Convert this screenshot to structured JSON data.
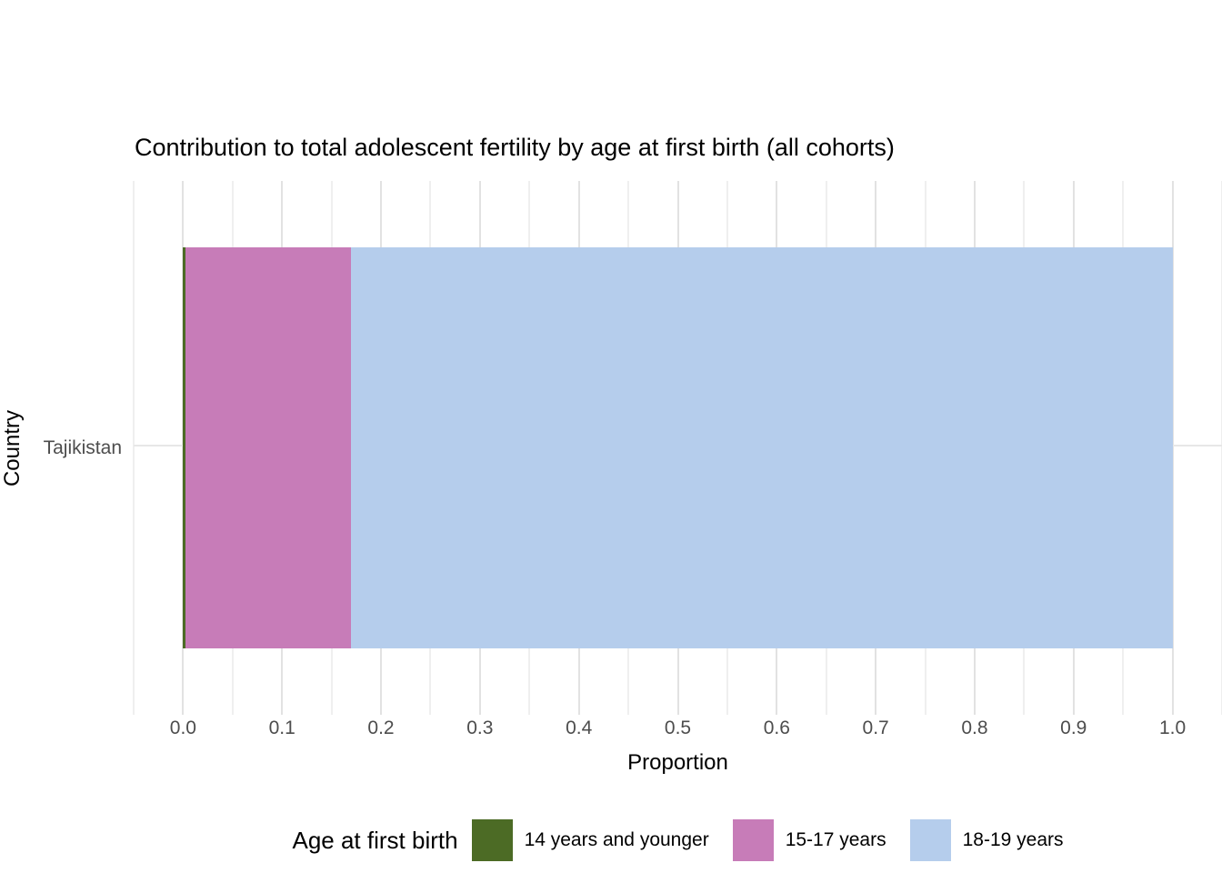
{
  "title": "Contribution to total adolescent fertility by age at first birth (all cohorts)",
  "x_axis": {
    "label": "Proportion",
    "tick_labels": [
      "0.0",
      "0.1",
      "0.2",
      "0.3",
      "0.4",
      "0.5",
      "0.6",
      "0.7",
      "0.8",
      "0.9",
      "1.0"
    ],
    "tick_values": [
      0.0,
      0.1,
      0.2,
      0.3,
      0.4,
      0.5,
      0.6,
      0.7,
      0.8,
      0.9,
      1.0
    ]
  },
  "y_axis": {
    "label": "Country",
    "categories": [
      "Tajikistan"
    ]
  },
  "legend": {
    "title": "Age at first birth",
    "items": [
      {
        "label": "14 years and younger",
        "color": "#4c6b25"
      },
      {
        "label": "15-17 years",
        "color": "#c77cb8"
      },
      {
        "label": "18-19 years",
        "color": "#b5cdec"
      }
    ]
  },
  "colors": {
    "age_14_and_younger": "#4c6b25",
    "age_15_17": "#c77cb8",
    "age_18_19": "#b5cdec",
    "major_gridline": "#e2e2e2",
    "minor_gridline": "#efefef",
    "tick_text": "#4d4d4d",
    "title_text": "#000000",
    "background": "#ffffff"
  },
  "chart_data": {
    "type": "bar",
    "orientation": "horizontal",
    "stacked": true,
    "title": "Contribution to total adolescent fertility by age at first birth (all cohorts)",
    "xlabel": "Proportion",
    "ylabel": "Country",
    "categories": [
      "Tajikistan"
    ],
    "series": [
      {
        "name": "14 years and younger",
        "color": "#4c6b25",
        "values": [
          0.002
        ]
      },
      {
        "name": "15-17 years",
        "color": "#c77cb8",
        "values": [
          0.168
        ]
      },
      {
        "name": "18-19 years",
        "color": "#b5cdec",
        "values": [
          0.83
        ]
      }
    ],
    "xlim": [
      0.0,
      1.0
    ],
    "x_range_expanded": [
      -0.05,
      1.05
    ],
    "x_major_step": 0.1,
    "x_minor_step": 0.05,
    "grid": true,
    "legend_title": "Age at first birth",
    "legend_position": "bottom"
  }
}
